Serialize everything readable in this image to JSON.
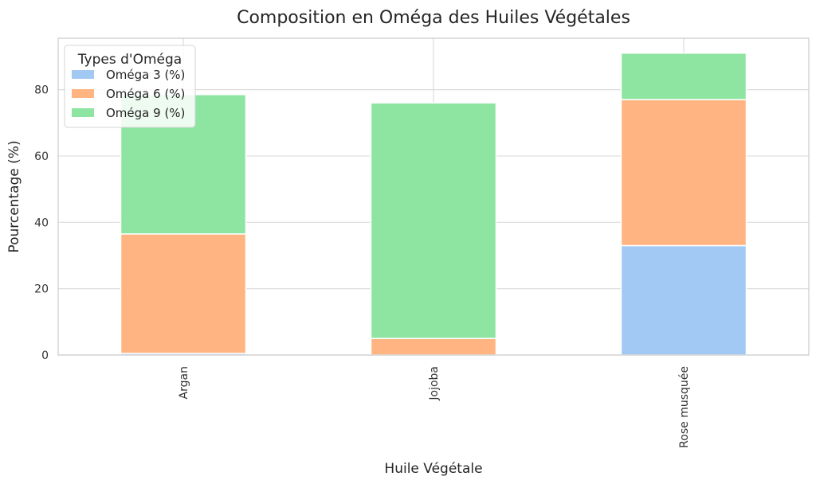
{
  "chart_data": {
    "type": "bar",
    "stacked": true,
    "title": "Composition en Oméga des Huiles Végétales",
    "xlabel": "Huile Végétale",
    "ylabel": "Pourcentage (%)",
    "categories": [
      "Argan",
      "Jojoba",
      "Rose musquée"
    ],
    "series": [
      {
        "name": "Oméga 3 (%)",
        "color": "#a1c9f4",
        "values": [
          0.5,
          0,
          33
        ]
      },
      {
        "name": "Oméga 6 (%)",
        "color": "#ffb482",
        "values": [
          36,
          5,
          44
        ]
      },
      {
        "name": "Oméga 9 (%)",
        "color": "#8de5a1",
        "values": [
          42,
          71,
          14
        ]
      }
    ],
    "ylim": [
      0,
      95.5
    ],
    "yticks": [
      0,
      20,
      40,
      60,
      80
    ],
    "grid": true,
    "legend": {
      "title": "Types d'Oméga",
      "position": "top-left"
    }
  }
}
